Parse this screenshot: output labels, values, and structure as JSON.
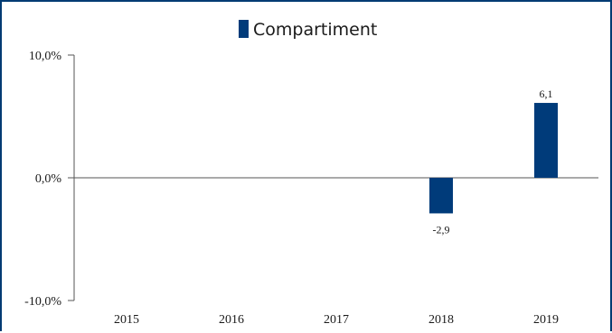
{
  "colors": {
    "bar": "#003b7a",
    "axis": "#555555",
    "frame": "#003b73"
  },
  "chart_data": {
    "type": "bar",
    "legend": "Compartiment",
    "legend_position": "top-center",
    "categories": [
      "2015",
      "2016",
      "2017",
      "2018",
      "2019"
    ],
    "series": [
      {
        "name": "Compartiment",
        "values": [
          null,
          null,
          null,
          -2.9,
          6.1
        ],
        "data_labels": [
          "",
          "",
          "",
          "-2,9",
          "6,1"
        ]
      }
    ],
    "ylim": [
      -10,
      10
    ],
    "yticks": [
      10,
      0,
      -10
    ],
    "ytick_labels": [
      "10,0%",
      "0,0%",
      "-10,0%"
    ],
    "grid": false
  }
}
